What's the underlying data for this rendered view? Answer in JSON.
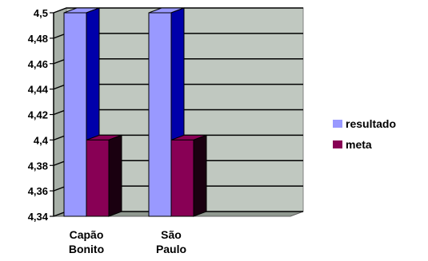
{
  "chart_data": {
    "type": "bar",
    "categories": [
      "Capão Bonito",
      "São Paulo"
    ],
    "category_lines": [
      [
        "Capão",
        "Bonito"
      ],
      [
        "São",
        "Paulo"
      ]
    ],
    "series": [
      {
        "name": "resultado",
        "values": [
          4.5,
          4.5
        ],
        "color": "#9999ff",
        "side_color": "#0000aa"
      },
      {
        "name": "meta",
        "values": [
          4.4,
          4.4
        ],
        "color": "#880055",
        "side_color": "#1a0010"
      }
    ],
    "ylim": [
      4.34,
      4.5
    ],
    "yticks": [
      "4,34",
      "4,36",
      "4,38",
      "4,4",
      "4,42",
      "4,44",
      "4,46",
      "4,48",
      "4,5"
    ],
    "title": "",
    "xlabel": "",
    "ylabel": "",
    "grid": true,
    "legend_position": "right",
    "style": "3d",
    "plot_background": "#c0c8c0"
  }
}
